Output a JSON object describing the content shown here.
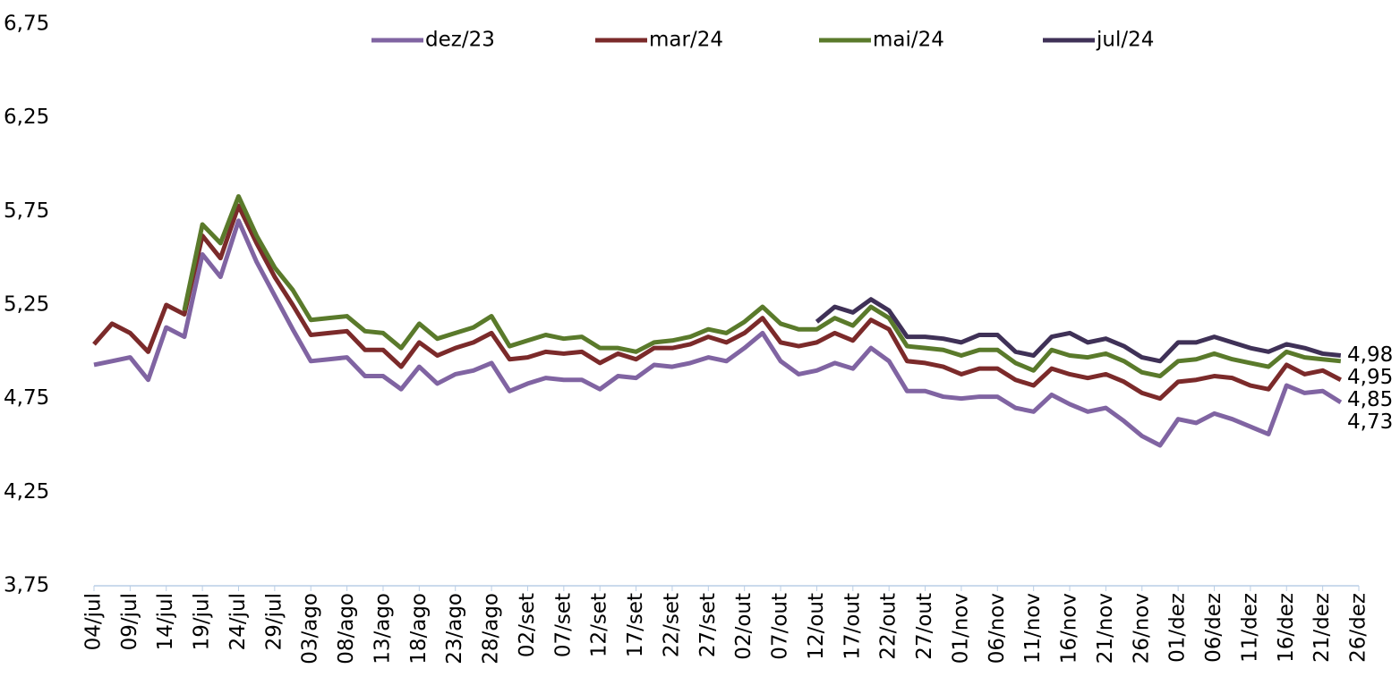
{
  "chart_data": {
    "type": "line",
    "categories": [
      "04/jul",
      null,
      "09/jul",
      null,
      "14/jul",
      null,
      "19/jul",
      null,
      "24/jul",
      null,
      "29/jul",
      null,
      "03/ago",
      null,
      "08/ago",
      null,
      "13/ago",
      null,
      "18/ago",
      null,
      "23/ago",
      null,
      "28/ago",
      null,
      "02/set",
      null,
      "07/set",
      null,
      "12/set",
      null,
      "17/set",
      null,
      "22/set",
      null,
      "27/set",
      null,
      "02/out",
      null,
      "07/out",
      null,
      "12/out",
      null,
      "17/out",
      null,
      "22/out",
      null,
      "27/out",
      null,
      "01/nov",
      null,
      "06/nov",
      null,
      "11/nov",
      null,
      "16/nov",
      null,
      "21/nov",
      null,
      "26/nov",
      null,
      "01/dez",
      null,
      "06/dez",
      null,
      "11/dez",
      null,
      "16/dez",
      null,
      "21/dez",
      null,
      "26/dez"
    ],
    "series": [
      {
        "name": "dez/23",
        "color": "#8064a2",
        "last_label": "4,73",
        "values": [
          4.93,
          4.95,
          4.97,
          4.85,
          5.13,
          5.08,
          5.52,
          5.4,
          5.7,
          5.48,
          5.3,
          5.12,
          4.95,
          4.96,
          4.97,
          4.87,
          4.87,
          4.8,
          4.92,
          4.83,
          4.88,
          4.9,
          4.94,
          4.79,
          4.83,
          4.86,
          4.85,
          4.85,
          4.8,
          4.87,
          4.86,
          4.93,
          4.92,
          4.94,
          4.97,
          4.95,
          5.02,
          5.1,
          4.95,
          4.88,
          4.9,
          4.94,
          4.91,
          5.02,
          4.95,
          4.79,
          4.79,
          4.76,
          4.75,
          4.76,
          4.76,
          4.7,
          4.68,
          4.77,
          4.72,
          4.68,
          4.7,
          4.63,
          4.55,
          4.5,
          4.64,
          4.62,
          4.67,
          4.64,
          4.6,
          4.56,
          4.82,
          4.78,
          4.79,
          4.73,
          null
        ]
      },
      {
        "name": "mar/24",
        "color": "#7b2a2a",
        "last_label": "4,85",
        "values": [
          5.04,
          5.15,
          5.1,
          5.0,
          5.25,
          5.2,
          5.62,
          5.5,
          5.78,
          5.58,
          5.4,
          5.25,
          5.09,
          5.1,
          5.11,
          5.01,
          5.01,
          4.92,
          5.05,
          4.98,
          5.02,
          5.05,
          5.1,
          4.96,
          4.97,
          5.0,
          4.99,
          5.0,
          4.94,
          4.99,
          4.96,
          5.02,
          5.02,
          5.04,
          5.08,
          5.05,
          5.1,
          5.18,
          5.05,
          5.03,
          5.05,
          5.1,
          5.06,
          5.17,
          5.12,
          4.95,
          4.94,
          4.92,
          4.88,
          4.91,
          4.91,
          4.85,
          4.82,
          4.91,
          4.88,
          4.86,
          4.88,
          4.84,
          4.78,
          4.75,
          4.84,
          4.85,
          4.87,
          4.86,
          4.82,
          4.8,
          4.93,
          4.88,
          4.9,
          4.85,
          null
        ]
      },
      {
        "name": "mai/24",
        "color": "#5a7a2b",
        "last_label": "4,95",
        "values": [
          null,
          null,
          null,
          null,
          null,
          5.22,
          5.68,
          5.58,
          5.83,
          5.62,
          5.45,
          5.33,
          5.17,
          5.18,
          5.19,
          5.11,
          5.1,
          5.02,
          5.15,
          5.07,
          5.1,
          5.13,
          5.19,
          5.03,
          5.06,
          5.09,
          5.07,
          5.08,
          5.02,
          5.02,
          5.0,
          5.05,
          5.06,
          5.08,
          5.12,
          5.1,
          5.16,
          5.24,
          5.15,
          5.12,
          5.12,
          5.18,
          5.14,
          5.24,
          5.18,
          5.03,
          5.02,
          5.01,
          4.98,
          5.01,
          5.01,
          4.94,
          4.9,
          5.01,
          4.98,
          4.97,
          4.99,
          4.95,
          4.89,
          4.87,
          4.95,
          4.96,
          4.99,
          4.96,
          4.94,
          4.92,
          5.0,
          4.97,
          4.96,
          4.95,
          null
        ]
      },
      {
        "name": "jul/24",
        "color": "#3f3157",
        "last_label": "4,98",
        "values": [
          null,
          null,
          null,
          null,
          null,
          null,
          null,
          null,
          null,
          null,
          null,
          null,
          null,
          null,
          null,
          null,
          null,
          null,
          null,
          null,
          null,
          null,
          null,
          null,
          null,
          null,
          null,
          null,
          null,
          null,
          null,
          null,
          null,
          null,
          null,
          null,
          null,
          null,
          null,
          null,
          5.16,
          5.24,
          5.21,
          5.28,
          5.22,
          5.08,
          5.08,
          5.07,
          5.05,
          5.09,
          5.09,
          5.0,
          4.98,
          5.08,
          5.1,
          5.05,
          5.07,
          5.03,
          4.97,
          4.95,
          5.05,
          5.05,
          5.08,
          5.05,
          5.02,
          5.0,
          5.04,
          5.02,
          4.99,
          4.98,
          null
        ]
      }
    ],
    "ylim": [
      3.75,
      6.75
    ],
    "yticks": [
      {
        "value": 3.75,
        "label": "3,75"
      },
      {
        "value": 4.25,
        "label": "4,25"
      },
      {
        "value": 4.75,
        "label": "4,75"
      },
      {
        "value": 5.25,
        "label": "5,25"
      },
      {
        "value": 5.75,
        "label": "5,75"
      },
      {
        "value": 6.25,
        "label": "6,25"
      },
      {
        "value": 6.75,
        "label": "6,75"
      }
    ],
    "grid": false,
    "legend": "top"
  }
}
